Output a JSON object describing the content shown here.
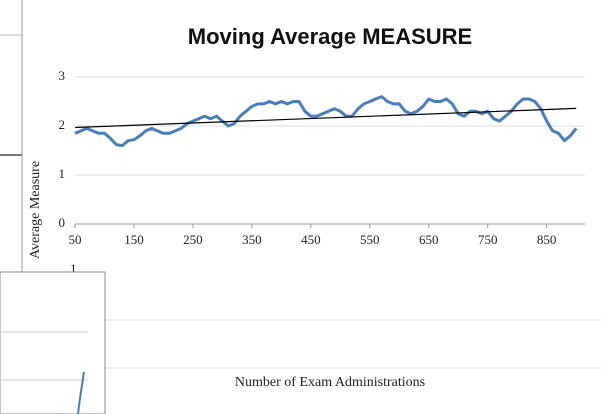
{
  "chart_data": {
    "type": "line",
    "title": "Moving Average MEASURE",
    "x_label": "Number of Exam Administrations",
    "y_label": "Average Measure",
    "x": [
      50,
      60,
      70,
      80,
      90,
      100,
      110,
      120,
      130,
      140,
      150,
      160,
      170,
      180,
      190,
      200,
      210,
      220,
      230,
      240,
      250,
      260,
      270,
      280,
      290,
      300,
      310,
      320,
      330,
      340,
      350,
      360,
      370,
      380,
      390,
      400,
      410,
      420,
      430,
      440,
      450,
      460,
      470,
      480,
      490,
      500,
      510,
      520,
      530,
      540,
      550,
      560,
      570,
      580,
      590,
      600,
      610,
      620,
      630,
      640,
      650,
      660,
      670,
      680,
      690,
      700,
      710,
      720,
      730,
      740,
      750,
      760,
      770,
      780,
      790,
      800,
      810,
      820,
      830,
      840,
      850,
      860,
      870,
      880,
      890,
      900
    ],
    "series": [
      {
        "color": "#4a7ebb",
        "values": [
          1.85,
          1.9,
          1.95,
          1.9,
          1.85,
          1.85,
          1.75,
          1.62,
          1.6,
          1.7,
          1.72,
          1.8,
          1.9,
          1.95,
          1.9,
          1.85,
          1.85,
          1.9,
          1.95,
          2.05,
          2.1,
          2.15,
          2.2,
          2.15,
          2.2,
          2.1,
          2.0,
          2.05,
          2.2,
          2.3,
          2.4,
          2.45,
          2.45,
          2.5,
          2.45,
          2.5,
          2.45,
          2.5,
          2.5,
          2.3,
          2.2,
          2.2,
          2.25,
          2.3,
          2.35,
          2.3,
          2.2,
          2.2,
          2.35,
          2.45,
          2.5,
          2.55,
          2.6,
          2.5,
          2.45,
          2.45,
          2.3,
          2.25,
          2.3,
          2.4,
          2.55,
          2.5,
          2.5,
          2.55,
          2.45,
          2.25,
          2.2,
          2.3,
          2.3,
          2.25,
          2.3,
          2.15,
          2.1,
          2.2,
          2.3,
          2.45,
          2.55,
          2.55,
          2.5,
          2.35,
          2.1,
          1.9,
          1.85,
          1.7,
          1.8,
          1.95
        ]
      },
      {
        "color": "#000000",
        "x": [
          50,
          900
        ],
        "values": [
          1.97,
          2.36
        ]
      }
    ],
    "xlim": [
      50,
      915
    ],
    "xticks": [
      50,
      150,
      250,
      350,
      450,
      550,
      650,
      750,
      850
    ],
    "ylim": [
      0,
      3
    ],
    "yticks": [
      0,
      1,
      2,
      3
    ],
    "grid": true
  },
  "background_window": {
    "ytick_label": "1"
  }
}
